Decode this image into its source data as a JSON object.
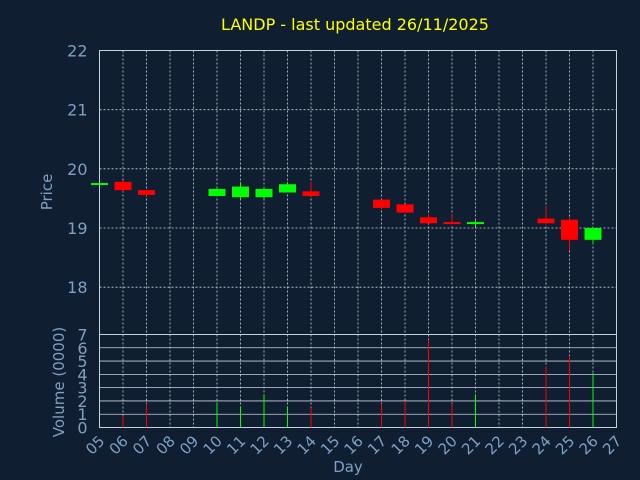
{
  "chart_data": {
    "type": "candlestick",
    "title": "LANDP - last updated 26/11/2025",
    "xlabel": "Day",
    "price_panel": {
      "ylabel": "Price",
      "ylim": [
        17.2,
        22
      ],
      "yticks": [
        18,
        19,
        20,
        21,
        22
      ]
    },
    "volume_panel": {
      "ylabel": "Volume (0000)",
      "ylim": [
        0,
        7
      ],
      "yticks": [
        0,
        1,
        2,
        3,
        4,
        5,
        6,
        7
      ]
    },
    "x_ticks": [
      "05",
      "06",
      "07",
      "08",
      "09",
      "10",
      "11",
      "12",
      "13",
      "14",
      "15",
      "16",
      "17",
      "18",
      "19",
      "20",
      "21",
      "22",
      "23",
      "24",
      "25",
      "26",
      "27"
    ],
    "colors": {
      "up": "#00ff00",
      "down": "#ff0000",
      "grid": "#c8d2dc",
      "background": "#0f1e30",
      "text": "#7ea1c3",
      "title": "#ffff00"
    },
    "candles": [
      {
        "day": "05",
        "open": 19.74,
        "high": 19.76,
        "low": 19.74,
        "close": 19.76,
        "volume": 0
      },
      {
        "day": "06",
        "open": 19.78,
        "high": 19.8,
        "low": 19.62,
        "close": 19.64,
        "volume": 0.9
      },
      {
        "day": "07",
        "open": 19.64,
        "high": 19.64,
        "low": 19.54,
        "close": 19.56,
        "volume": 1.8
      },
      {
        "day": "10",
        "open": 19.54,
        "high": 19.68,
        "low": 19.54,
        "close": 19.66,
        "volume": 1.9
      },
      {
        "day": "11",
        "open": 19.52,
        "high": 19.78,
        "low": 19.5,
        "close": 19.7,
        "volume": 1.6
      },
      {
        "day": "12",
        "open": 19.52,
        "high": 19.7,
        "low": 19.5,
        "close": 19.66,
        "volume": 2.5
      },
      {
        "day": "13",
        "open": 19.6,
        "high": 19.78,
        "low": 19.6,
        "close": 19.74,
        "volume": 1.6
      },
      {
        "day": "14",
        "open": 19.62,
        "high": 19.78,
        "low": 19.54,
        "close": 19.54,
        "volume": 1.5
      },
      {
        "day": "17",
        "open": 19.48,
        "high": 19.48,
        "low": 19.32,
        "close": 19.34,
        "volume": 1.8
      },
      {
        "day": "18",
        "open": 19.4,
        "high": 19.4,
        "low": 19.26,
        "close": 19.26,
        "volume": 2.0
      },
      {
        "day": "19",
        "open": 19.18,
        "high": 19.24,
        "low": 19.08,
        "close": 19.08,
        "volume": 6.6
      },
      {
        "day": "20",
        "open": 19.1,
        "high": 19.22,
        "low": 19.06,
        "close": 19.08,
        "volume": 1.8
      },
      {
        "day": "21",
        "open": 19.08,
        "high": 19.12,
        "low": 19.02,
        "close": 19.1,
        "volume": 2.5
      },
      {
        "day": "24",
        "open": 19.16,
        "high": 19.36,
        "low": 19.06,
        "close": 19.08,
        "volume": 4.6
      },
      {
        "day": "25",
        "open": 19.14,
        "high": 19.18,
        "low": 18.62,
        "close": 18.8,
        "volume": 5.4
      },
      {
        "day": "26",
        "open": 18.8,
        "high": 19.02,
        "low": 18.72,
        "close": 19.0,
        "volume": 4.1
      }
    ]
  }
}
